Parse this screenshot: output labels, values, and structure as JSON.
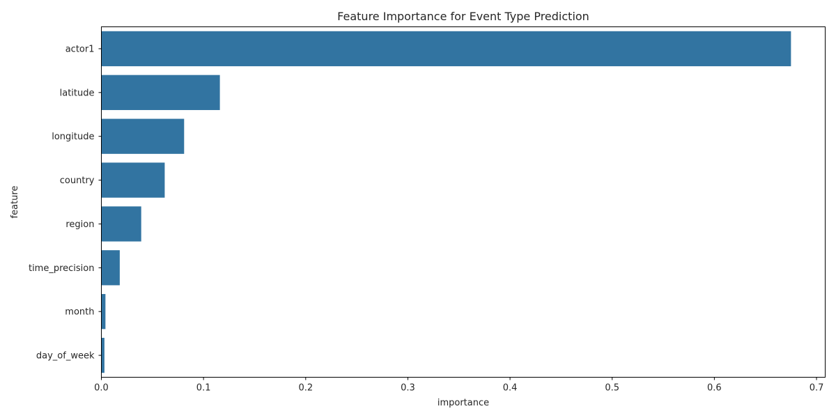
{
  "chart_data": {
    "type": "bar",
    "orientation": "horizontal",
    "title": "Feature Importance for Event Type Prediction",
    "xlabel": "importance",
    "ylabel": "feature",
    "categories": [
      "actor1",
      "latitude",
      "longitude",
      "country",
      "region",
      "time_precision",
      "month",
      "day_of_week"
    ],
    "values": [
      0.675,
      0.116,
      0.081,
      0.062,
      0.039,
      0.018,
      0.004,
      0.003
    ],
    "xlim": [
      0,
      0.7085
    ],
    "xticks": [
      0.0,
      0.1,
      0.2,
      0.3,
      0.4,
      0.5,
      0.6,
      0.7
    ],
    "xtick_labels": [
      "0.0",
      "0.1",
      "0.2",
      "0.3",
      "0.4",
      "0.5",
      "0.6",
      "0.7"
    ],
    "grid": false,
    "bar_color": "#3274a1"
  }
}
